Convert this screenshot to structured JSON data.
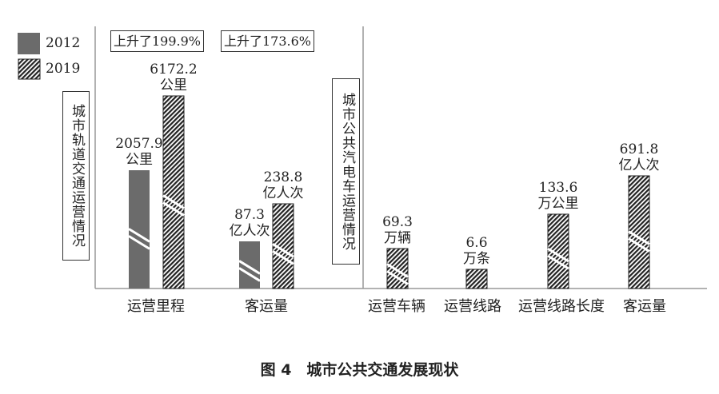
{
  "chart_data": [
    {
      "type": "bar",
      "panel": "left",
      "group_label": "城市轨道交通运营情况",
      "categories": [
        "运营里程",
        "客运量"
      ],
      "series": [
        {
          "name": "2012",
          "values": [
            2057.9,
            87.3
          ],
          "labels": [
            [
              "2057.9",
              "公里"
            ],
            [
              "87.3",
              "亿人次"
            ]
          ],
          "color": "#6b6b6b",
          "pattern": "solid"
        },
        {
          "name": "2019",
          "values": [
            6172.2,
            238.8
          ],
          "labels": [
            [
              "6172.2",
              "公里"
            ],
            [
              "238.8",
              "亿人次"
            ]
          ],
          "color": "#222222",
          "pattern": "hatched"
        }
      ],
      "annotations": [
        "上升了199.9%",
        "上升了173.6%"
      ],
      "axis_break": true
    },
    {
      "type": "bar",
      "panel": "right",
      "group_label": "城市公共汽电车运营情况",
      "categories": [
        "运营车辆",
        "运营线路",
        "运营线路长度",
        "客运量"
      ],
      "series": [
        {
          "name": "2019",
          "values": [
            69.3,
            6.6,
            133.6,
            691.8
          ],
          "labels": [
            [
              "69.3",
              "万辆"
            ],
            [
              "6.6",
              "万条"
            ],
            [
              "133.6",
              "万公里"
            ],
            [
              "691.8",
              "亿人次"
            ]
          ],
          "pattern": "hatched"
        }
      ],
      "axis_break": true
    }
  ],
  "legend": {
    "items": [
      "2012",
      "2019"
    ],
    "placement": "top-left"
  },
  "caption": "图 4　城市公共交通发展现状"
}
